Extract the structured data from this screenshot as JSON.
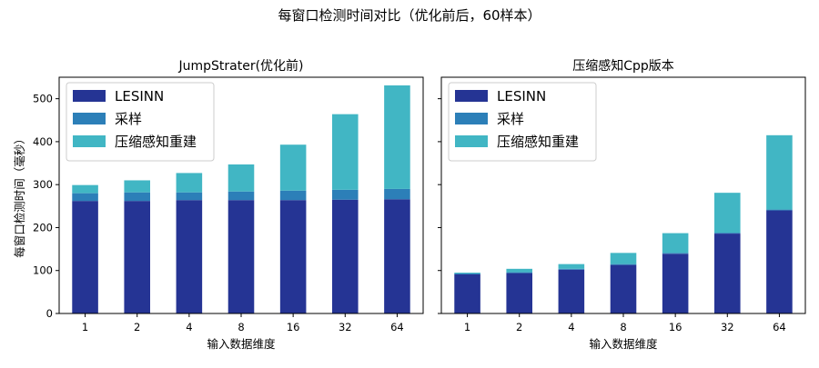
{
  "figure": {
    "suptitle": "每窗口检测时间对比（优化前后，60样本）",
    "shared_ylabel": "每窗口检测时间（毫秒）"
  },
  "colors": {
    "LESINN": "#253494",
    "采样": "#2c7fb8",
    "压缩感知重建": "#41b6c4"
  },
  "chart_data": [
    {
      "type": "bar",
      "stacked": true,
      "title": "JumpStrater(优化前)",
      "xlabel": "输入数据维度",
      "ylabel": "每窗口检测时间（毫秒）",
      "categories": [
        "1",
        "2",
        "4",
        "8",
        "16",
        "32",
        "64"
      ],
      "ylim": [
        0,
        550
      ],
      "yticks": [
        0,
        100,
        200,
        300,
        400,
        500
      ],
      "legend_position": "upper-left",
      "grid": false,
      "series": [
        {
          "name": "LESINN",
          "values": [
            262,
            262,
            264,
            264,
            264,
            265,
            266
          ]
        },
        {
          "name": "采样",
          "values": [
            18,
            20,
            18,
            20,
            22,
            23,
            24
          ]
        },
        {
          "name": "压缩感知重建",
          "values": [
            19,
            28,
            45,
            63,
            107,
            176,
            241
          ]
        }
      ]
    },
    {
      "type": "bar",
      "stacked": true,
      "title": "压缩感知Cpp版本",
      "xlabel": "输入数据维度",
      "categories": [
        "1",
        "2",
        "4",
        "8",
        "16",
        "32",
        "64"
      ],
      "ylim": [
        0,
        550
      ],
      "yticks": [
        0,
        100,
        200,
        300,
        400,
        500
      ],
      "legend_position": "upper-left",
      "grid": false,
      "series": [
        {
          "name": "LESINN",
          "values": [
            91,
            94,
            102,
            113,
            139,
            186,
            240
          ]
        },
        {
          "name": "采样",
          "values": [
            2,
            2,
            2,
            2,
            2,
            2,
            2
          ]
        },
        {
          "name": "压缩感知重建",
          "values": [
            2,
            8,
            11,
            26,
            46,
            93,
            173
          ]
        }
      ]
    }
  ]
}
